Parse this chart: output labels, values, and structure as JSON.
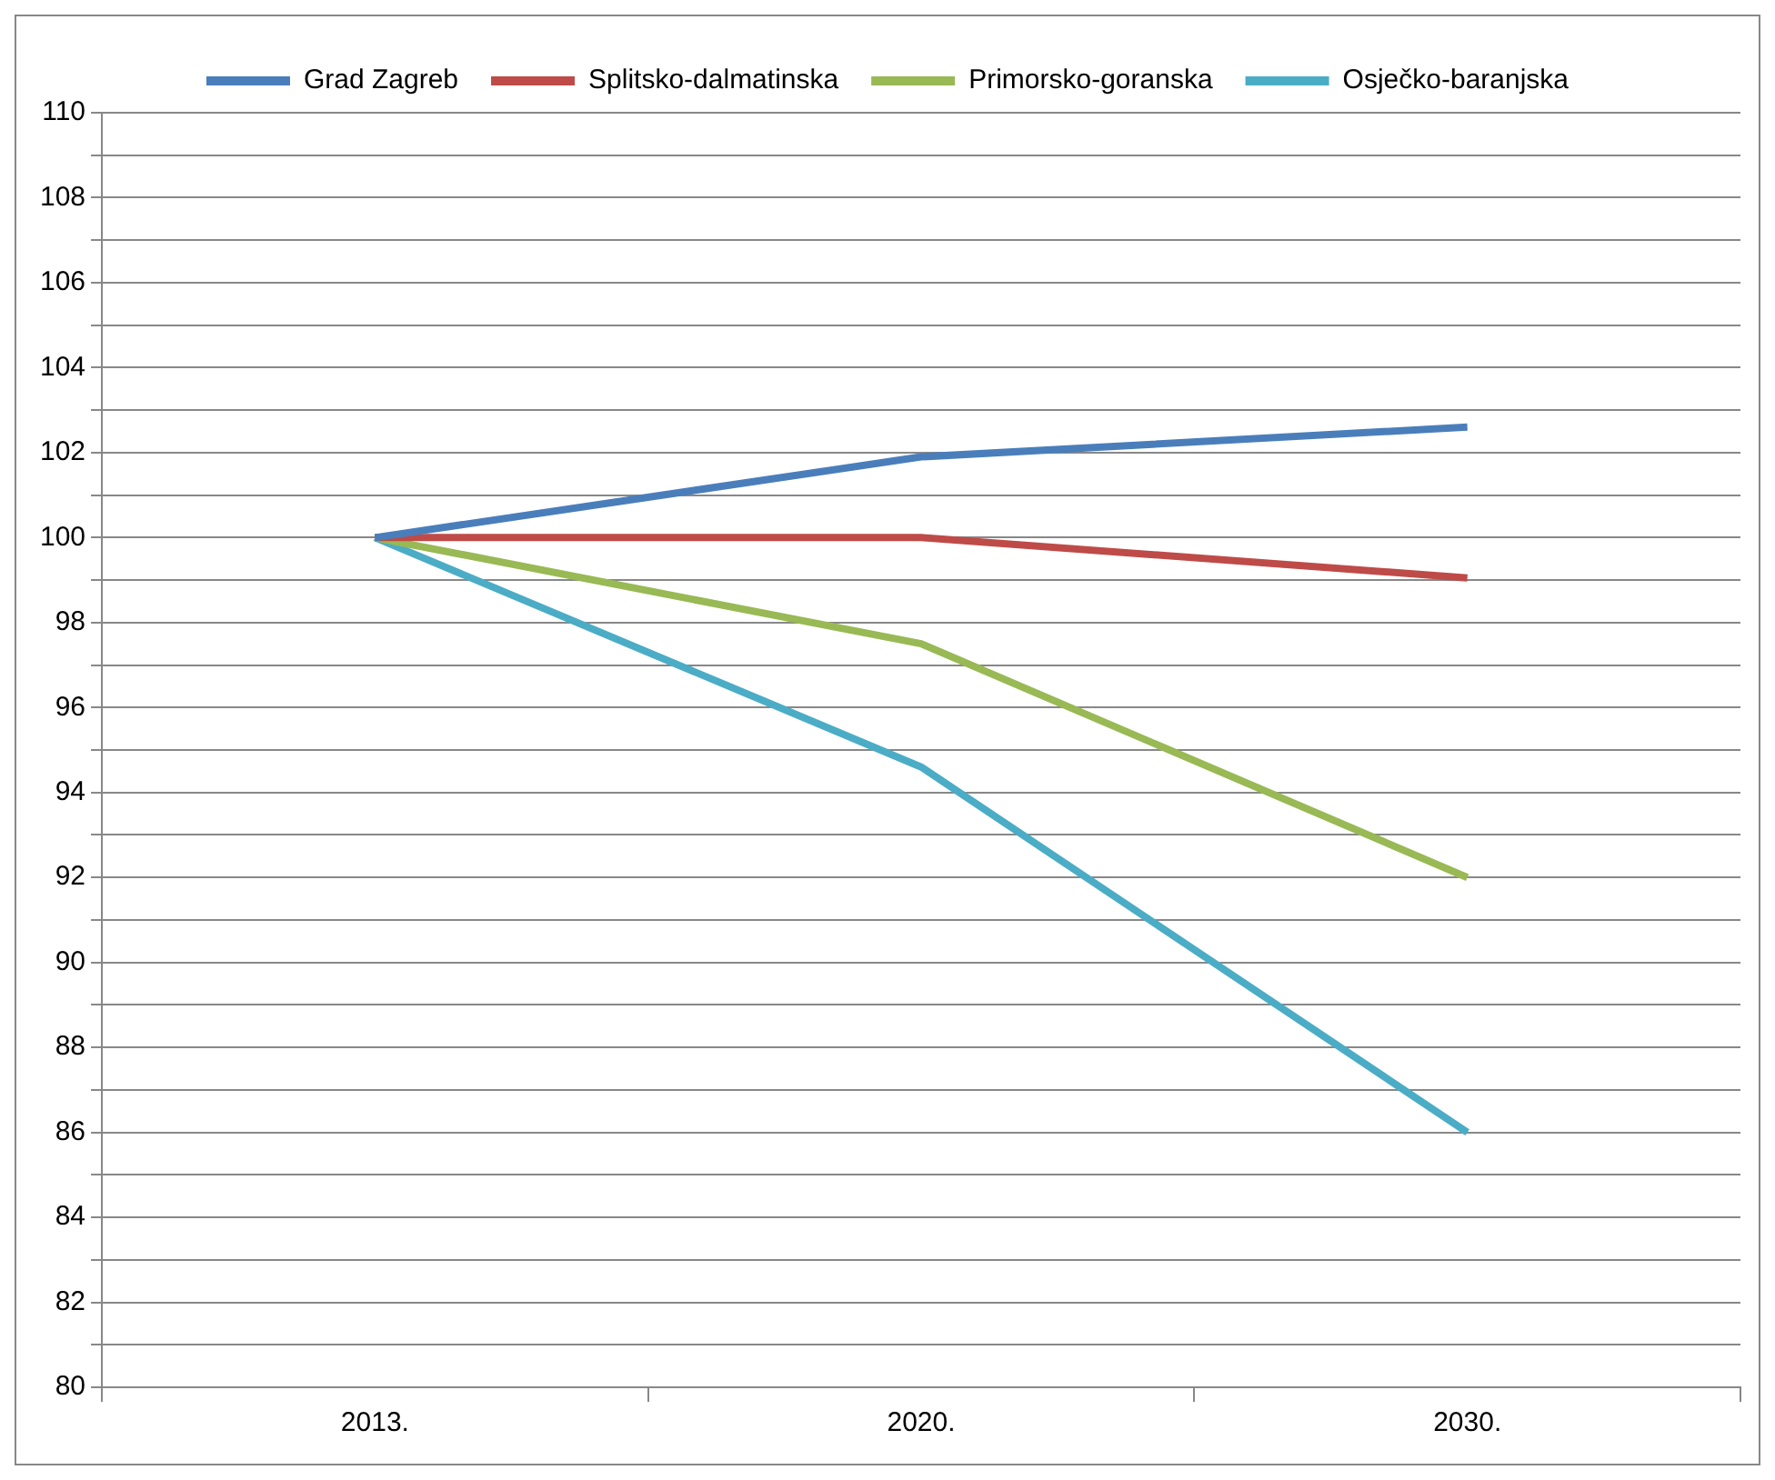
{
  "chart_data": {
    "type": "line",
    "categories": [
      "2013.",
      "2020.",
      "2030."
    ],
    "series": [
      {
        "name": "Grad Zagreb",
        "color": "#4a7ebb",
        "values": [
          100,
          101.9,
          102.6
        ]
      },
      {
        "name": "Splitsko-dalmatinska",
        "color": "#be4b48",
        "values": [
          100,
          100,
          99.05
        ]
      },
      {
        "name": "Primorsko-goranska",
        "color": "#98b954",
        "values": [
          100,
          97.5,
          92
        ]
      },
      {
        "name": "Osječko-baranjska",
        "color": "#4bacc6",
        "values": [
          100,
          94.6,
          86
        ]
      }
    ],
    "ylim": [
      80,
      110
    ],
    "yticks": [
      80,
      {
        "value": 81,
        "label": null
      },
      82,
      {
        "value": 83,
        "label": null
      },
      84,
      {
        "value": 85,
        "label": null
      },
      86,
      {
        "value": 87,
        "label": null
      },
      88,
      {
        "value": 89,
        "label": null
      },
      90,
      {
        "value": 91,
        "label": null
      },
      92,
      {
        "value": 93,
        "label": null
      },
      94,
      {
        "value": 95,
        "label": null
      },
      96,
      {
        "value": 97,
        "label": null
      },
      98,
      {
        "value": 99,
        "label": null
      },
      100,
      {
        "value": 101,
        "label": null
      },
      102,
      {
        "value": 103,
        "label": null
      },
      104,
      {
        "value": 105,
        "label": null
      },
      106,
      {
        "value": 107,
        "label": null
      },
      108,
      {
        "value": 109,
        "label": null
      },
      110
    ],
    "grid": "y",
    "legend": "top",
    "marker": "none",
    "line_style": "solid"
  }
}
